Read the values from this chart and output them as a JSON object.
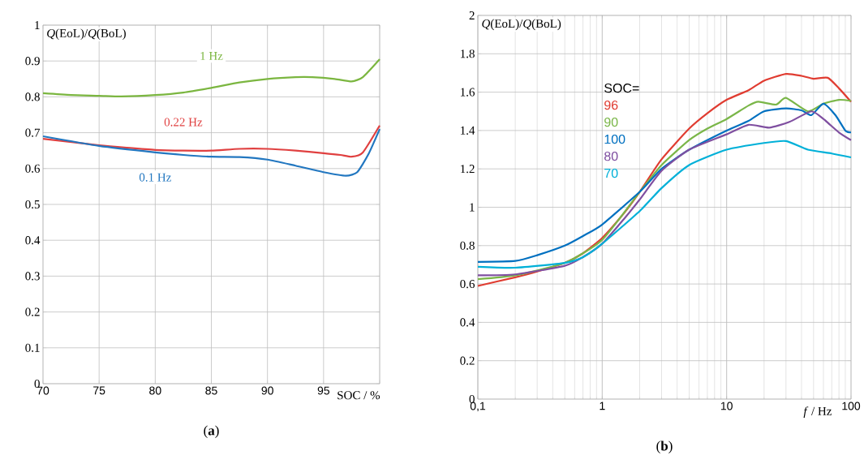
{
  "chart_data": [
    {
      "type": "line",
      "title": "(**a**)",
      "xlabel": "SOC / %",
      "ylabel": "*Q*(EoL)/*Q*(BoL)",
      "xlim": [
        70,
        100
      ],
      "xticks": [
        70,
        75,
        80,
        85,
        90,
        95,
        {
          "value": 100,
          "label": null
        }
      ],
      "ylim": [
        0,
        1
      ],
      "yticks": [
        0,
        0.1,
        0.2,
        0.3,
        0.4,
        0.5,
        0.6,
        0.7,
        0.8,
        0.9,
        1
      ],
      "grid": true,
      "series": [
        {
          "name": "1 Hz",
          "color": "#7bb640",
          "x": [
            70,
            72.5,
            75,
            77,
            80,
            82.5,
            85,
            87.5,
            90,
            92.5,
            94,
            96,
            97.5,
            98.5,
            100
          ],
          "values": [
            0.81,
            0.805,
            0.803,
            0.801,
            0.805,
            0.812,
            0.825,
            0.84,
            0.85,
            0.855,
            0.855,
            0.85,
            0.843,
            0.855,
            0.905
          ]
        },
        {
          "name": "0.22 Hz",
          "color": "#e04040",
          "x": [
            70,
            75,
            77.5,
            80,
            82.5,
            85,
            87.5,
            90,
            92.5,
            95,
            96.5,
            97.5,
            98.5,
            100
          ],
          "values": [
            0.683,
            0.665,
            0.658,
            0.652,
            0.65,
            0.65,
            0.655,
            0.655,
            0.65,
            0.643,
            0.638,
            0.633,
            0.645,
            0.72
          ]
        },
        {
          "name": "0.1 Hz",
          "color": "#2277c0",
          "x": [
            70,
            75,
            80,
            82.5,
            85,
            87.5,
            90,
            92.5,
            95,
            97,
            98,
            99,
            100
          ],
          "values": [
            0.69,
            0.663,
            0.645,
            0.638,
            0.633,
            0.632,
            0.625,
            0.608,
            0.59,
            0.58,
            0.59,
            0.64,
            0.71
          ]
        }
      ]
    },
    {
      "type": "line",
      "title": "(**b**)",
      "xlabel": "*f* / Hz",
      "ylabel": "*Q*(EoL)/*Q*(BoL)",
      "log": "x",
      "xlim": [
        0.1,
        100
      ],
      "xticks": [
        {
          "value": 0.1,
          "label": "0,1"
        },
        1,
        10,
        100
      ],
      "ylim": [
        0,
        2
      ],
      "yticks": [
        0,
        0.2,
        0.4,
        0.6,
        0.8,
        1,
        1.2,
        1.4,
        1.6,
        1.8,
        2
      ],
      "grid": true,
      "legend": "top left",
      "legend_title": "SOC=",
      "series": [
        {
          "name": "96",
          "color": "#e03c31",
          "x": [
            0.1,
            0.2,
            0.3,
            0.5,
            0.7,
            1,
            1.5,
            2,
            3,
            5,
            7,
            10,
            15,
            20,
            30,
            40,
            50,
            65,
            80,
            100
          ],
          "values": [
            0.59,
            0.635,
            0.665,
            0.71,
            0.76,
            0.84,
            0.97,
            1.08,
            1.25,
            1.41,
            1.49,
            1.56,
            1.61,
            1.66,
            1.695,
            1.685,
            1.67,
            1.675,
            1.62,
            1.55
          ]
        },
        {
          "name": "90",
          "color": "#7ab648",
          "x": [
            0.1,
            0.2,
            0.5,
            1,
            2,
            3,
            5,
            7,
            10,
            15,
            18,
            25,
            30,
            45,
            60,
            80,
            100
          ],
          "values": [
            0.625,
            0.645,
            0.71,
            0.83,
            1.08,
            1.22,
            1.35,
            1.41,
            1.46,
            1.53,
            1.55,
            1.535,
            1.57,
            1.5,
            1.54,
            1.56,
            1.555
          ]
        },
        {
          "name": "100",
          "color": "#0070c0",
          "x": [
            0.1,
            0.2,
            0.3,
            0.5,
            0.7,
            1,
            2,
            3,
            5,
            10,
            15,
            20,
            30,
            40,
            48,
            60,
            75,
            90,
            100
          ],
          "values": [
            0.715,
            0.72,
            0.75,
            0.8,
            0.85,
            0.91,
            1.08,
            1.2,
            1.3,
            1.4,
            1.45,
            1.5,
            1.515,
            1.505,
            1.48,
            1.54,
            1.48,
            1.4,
            1.39
          ]
        },
        {
          "name": "80",
          "color": "#7f4fa0",
          "x": [
            0.1,
            0.2,
            0.5,
            0.7,
            1,
            1.5,
            2,
            3,
            5,
            10,
            15,
            22,
            32,
            48,
            60,
            80,
            100
          ],
          "values": [
            0.645,
            0.65,
            0.695,
            0.74,
            0.81,
            0.94,
            1.04,
            1.19,
            1.3,
            1.38,
            1.43,
            1.415,
            1.445,
            1.5,
            1.46,
            1.39,
            1.35
          ]
        },
        {
          "name": "70",
          "color": "#00b0d8",
          "x": [
            0.1,
            0.2,
            0.5,
            0.7,
            1,
            2,
            3,
            5,
            10,
            20,
            30,
            45,
            70,
            100
          ],
          "values": [
            0.69,
            0.685,
            0.71,
            0.74,
            0.81,
            0.98,
            1.1,
            1.22,
            1.3,
            1.335,
            1.345,
            1.3,
            1.28,
            1.26
          ]
        }
      ]
    }
  ]
}
